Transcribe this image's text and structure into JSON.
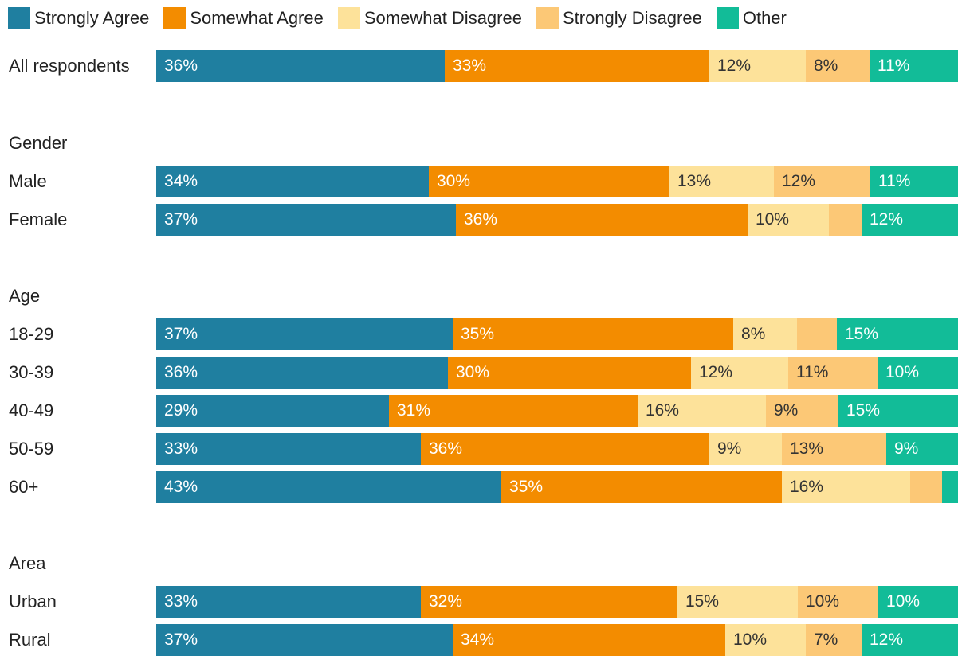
{
  "chart_data": {
    "type": "bar",
    "orientation": "horizontal",
    "stacked": true,
    "legend_position": "top",
    "title": "",
    "series": [
      {
        "name": "Strongly Agree",
        "color": "#1f7fa0",
        "text_color": "#ffffff"
      },
      {
        "name": "Somewhat Agree",
        "color": "#f38c00",
        "text_color": "#ffffff"
      },
      {
        "name": "Somewhat Disagree",
        "color": "#fde29a",
        "text_color": "#333333"
      },
      {
        "name": "Strongly Disagree",
        "color": "#fcc876",
        "text_color": "#333333"
      },
      {
        "name": "Other",
        "color": "#12bc98",
        "text_color": "#ffffff"
      }
    ],
    "groups": [
      {
        "label": "",
        "rows": [
          {
            "label": "All respondents",
            "values": [
              36,
              33,
              12,
              8,
              11
            ],
            "labels": [
              "36%",
              "33%",
              "12%",
              "8%",
              "11%"
            ]
          }
        ]
      },
      {
        "label": "Gender",
        "rows": [
          {
            "label": "Male",
            "values": [
              34,
              30,
              13,
              12,
              11
            ],
            "labels": [
              "34%",
              "30%",
              "13%",
              "12%",
              "11%"
            ]
          },
          {
            "label": "Female",
            "values": [
              37,
              36,
              10,
              4,
              12
            ],
            "labels": [
              "37%",
              "36%",
              "10%",
              "",
              "12%"
            ]
          }
        ]
      },
      {
        "label": "Age",
        "rows": [
          {
            "label": "18-29",
            "values": [
              37,
              35,
              8,
              5,
              15
            ],
            "labels": [
              "37%",
              "35%",
              "8%",
              "",
              "15%"
            ]
          },
          {
            "label": "30-39",
            "values": [
              36,
              30,
              12,
              11,
              10
            ],
            "labels": [
              "36%",
              "30%",
              "12%",
              "11%",
              "10%"
            ]
          },
          {
            "label": "40-49",
            "values": [
              29,
              31,
              16,
              9,
              15
            ],
            "labels": [
              "29%",
              "31%",
              "16%",
              "9%",
              "15%"
            ]
          },
          {
            "label": "50-59",
            "values": [
              33,
              36,
              9,
              13,
              9
            ],
            "labels": [
              "33%",
              "36%",
              "9%",
              "13%",
              "9%"
            ]
          },
          {
            "label": "60+",
            "values": [
              43,
              35,
              16,
              4,
              2
            ],
            "labels": [
              "43%",
              "35%",
              "16%",
              "",
              ""
            ]
          }
        ]
      },
      {
        "label": "Area",
        "rows": [
          {
            "label": "Urban",
            "values": [
              33,
              32,
              15,
              10,
              10
            ],
            "labels": [
              "33%",
              "32%",
              "15%",
              "10%",
              "10%"
            ]
          },
          {
            "label": "Rural",
            "values": [
              37,
              34,
              10,
              7,
              12
            ],
            "labels": [
              "37%",
              "34%",
              "10%",
              "7%",
              "12%"
            ]
          }
        ]
      }
    ]
  }
}
